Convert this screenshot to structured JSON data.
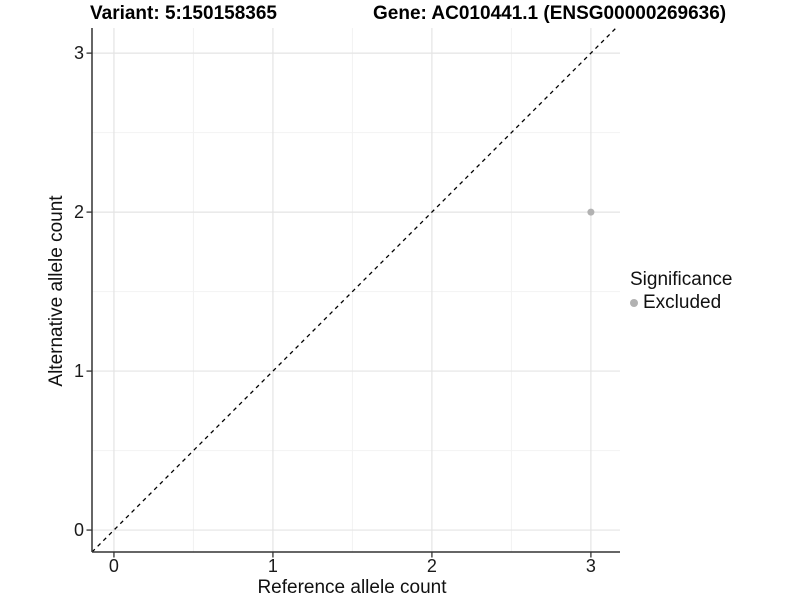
{
  "titles": {
    "variant": "Variant: 5:150158365",
    "gene": "Gene: AC010441.1 (ENSG00000269636)"
  },
  "axes": {
    "x_label": "Reference allele count",
    "y_label": "Alternative allele count"
  },
  "legend": {
    "title": "Significance",
    "items": [
      {
        "label": "Excluded",
        "color": "#b2b2b2"
      }
    ]
  },
  "chart_data": {
    "type": "scatter",
    "title_left": "Variant: 5:150158365",
    "title_right": "Gene: AC010441.1 (ENSG00000269636)",
    "xlabel": "Reference allele count",
    "ylabel": "Alternative allele count",
    "points": [
      {
        "x": 3,
        "y": 2,
        "series": "Excluded",
        "color": "#b2b2b2"
      }
    ],
    "x_ticks": [
      0,
      1,
      2,
      3
    ],
    "y_ticks": [
      0,
      1,
      2,
      3
    ],
    "x_minor_ticks": [
      0.5,
      1.5,
      2.5
    ],
    "y_minor_ticks": [
      0.5,
      1.5,
      2.5
    ],
    "xlim": [
      -0.138,
      3.183
    ],
    "ylim": [
      -0.138,
      3.158
    ],
    "reference_line": {
      "type": "identity",
      "slope": 1,
      "intercept": 0,
      "style": "dashed",
      "color": "#000000"
    },
    "grid": "major+minor",
    "legend_position": "right",
    "legend_title": "Significance",
    "legend_entries": [
      "Excluded"
    ],
    "colors": {
      "point_excluded": "#b2b2b2",
      "grid_major": "#e4e4e4",
      "grid_minor": "#f2f2f2",
      "axis_line": "#333333",
      "tick_mark": "#333333",
      "background": "#ffffff"
    }
  }
}
